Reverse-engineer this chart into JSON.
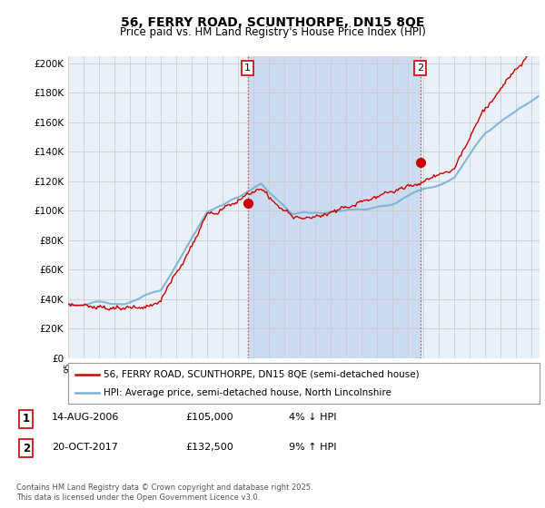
{
  "title": "56, FERRY ROAD, SCUNTHORPE, DN15 8QE",
  "subtitle": "Price paid vs. HM Land Registry's House Price Index (HPI)",
  "ylabel_ticks": [
    "£0",
    "£20K",
    "£40K",
    "£60K",
    "£80K",
    "£100K",
    "£120K",
    "£140K",
    "£160K",
    "£180K",
    "£200K"
  ],
  "ytick_values": [
    0,
    20000,
    40000,
    60000,
    80000,
    100000,
    120000,
    140000,
    160000,
    180000,
    200000
  ],
  "ylim": [
    0,
    205000
  ],
  "xlim_start": 1995.0,
  "xlim_end": 2025.5,
  "legend_line1": "56, FERRY ROAD, SCUNTHORPE, DN15 8QE (semi-detached house)",
  "legend_line2": "HPI: Average price, semi-detached house, North Lincolnshire",
  "sale1_x": 2006.62,
  "sale1_y": 105000,
  "sale2_x": 2017.79,
  "sale2_y": 132500,
  "footnote": "Contains HM Land Registry data © Crown copyright and database right 2025.\nThis data is licensed under the Open Government Licence v3.0.",
  "line_color_red": "#cc0000",
  "line_color_blue": "#7ab0d4",
  "bg_color": "#ddeeff",
  "bg_color_chart": "#e8f0f8",
  "grid_color": "#c8c8c8",
  "shade_color": "#ccdcf0"
}
